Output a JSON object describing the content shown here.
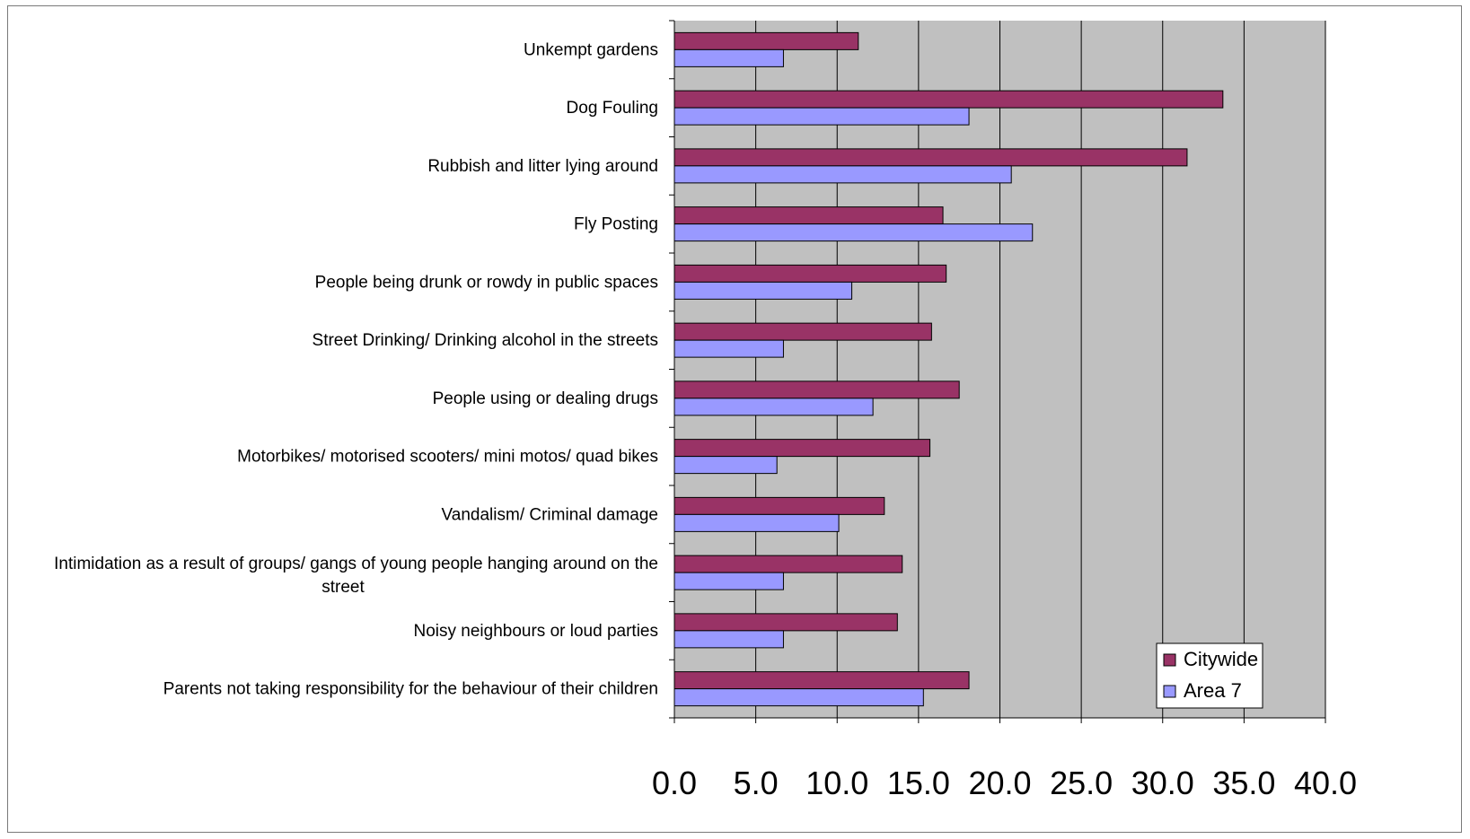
{
  "chart_data": {
    "type": "bar",
    "orientation": "horizontal",
    "title": "",
    "xlabel": "",
    "ylabel": "",
    "xlim": [
      0,
      40
    ],
    "x_ticks": [
      "0.0",
      "5.0",
      "10.0",
      "15.0",
      "20.0",
      "25.0",
      "30.0",
      "35.0",
      "40.0"
    ],
    "grid": true,
    "plot_background": "#c0c0c0",
    "legend_position": "bottom-right",
    "categories": [
      "Unkempt gardens",
      "Dog Fouling",
      "Rubbish and litter lying around",
      "Fly Posting",
      "People being drunk or rowdy in public spaces",
      "Street Drinking/ Drinking alcohol in the streets",
      "People using or dealing drugs",
      "Motorbikes/ motorised scooters/ mini motos/ quad bikes",
      "Vandalism/ Criminal damage",
      "Intimidation as a result of groups/ gangs of young people hanging around on the street",
      "Noisy neighbours or loud parties",
      "Parents not taking responsibility for the behaviour of their children"
    ],
    "category_lines": [
      [
        "Unkempt gardens"
      ],
      [
        "Dog Fouling"
      ],
      [
        "Rubbish and litter lying around"
      ],
      [
        "Fly Posting"
      ],
      [
        "People being drunk or rowdy in public spaces"
      ],
      [
        "Street Drinking/ Drinking alcohol in the streets"
      ],
      [
        "People using or dealing drugs"
      ],
      [
        "Motorbikes/ motorised scooters/ mini motos/ quad bikes"
      ],
      [
        "Vandalism/ Criminal damage"
      ],
      [
        "Intimidation as a result of groups/ gangs of young people hanging around on the",
        "street"
      ],
      [
        "Noisy neighbours or loud parties"
      ],
      [
        "Parents not taking responsibility for the behaviour of their children"
      ]
    ],
    "series": [
      {
        "name": "Citywide",
        "color": "#993366",
        "values": [
          11.3,
          33.7,
          31.5,
          16.5,
          16.7,
          15.8,
          17.5,
          15.7,
          12.9,
          14.0,
          13.7,
          18.1
        ]
      },
      {
        "name": "Area 7",
        "color": "#9999ff",
        "values": [
          6.7,
          18.1,
          20.7,
          22.0,
          10.9,
          6.7,
          12.2,
          6.3,
          10.1,
          6.7,
          6.7,
          15.3
        ]
      }
    ]
  }
}
